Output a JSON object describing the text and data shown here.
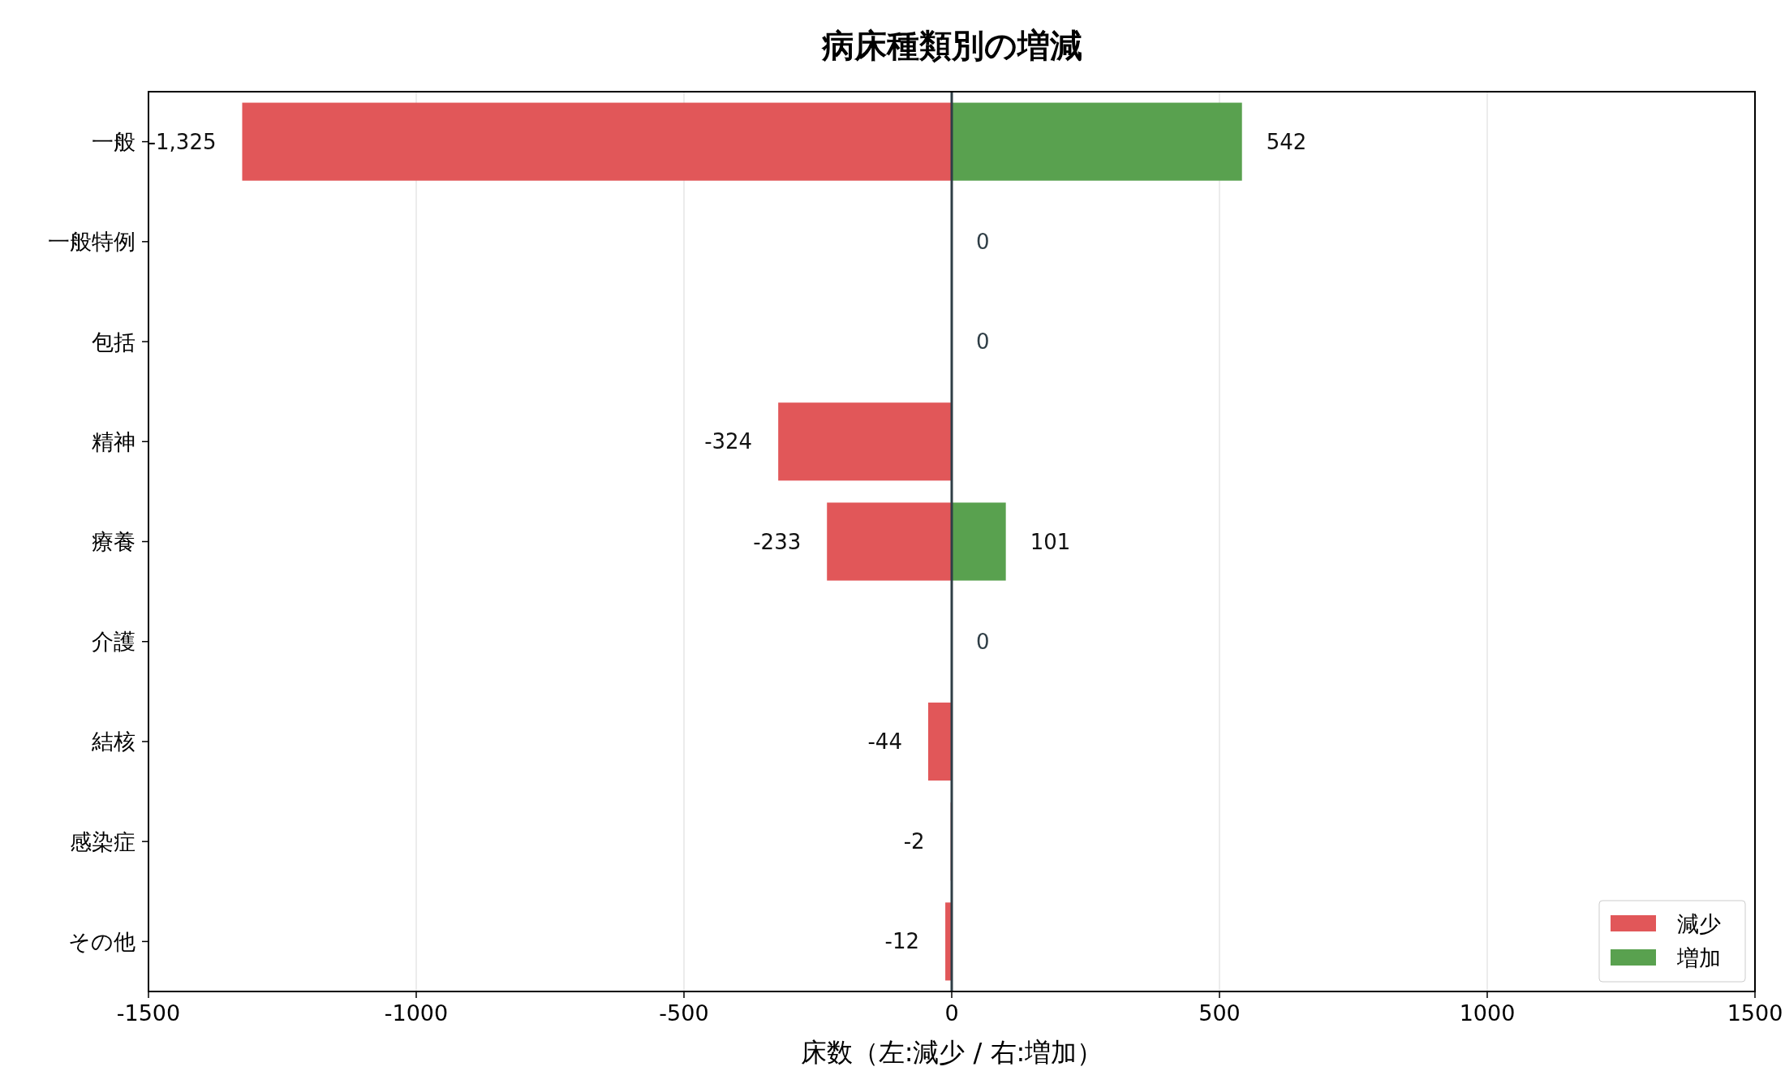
{
  "chart_data": {
    "type": "bar",
    "orientation": "horizontal",
    "title": "病床種類別の増減",
    "xlabel": "床数（左:減少 / 右:増加）",
    "categories": [
      "一般",
      "一般特例",
      "包括",
      "精神",
      "療養",
      "介護",
      "結核",
      "感染症",
      "その他"
    ],
    "series": [
      {
        "name": "減少",
        "color": "#e15759",
        "values": [
          -1325,
          0,
          0,
          -324,
          -233,
          0,
          -44,
          -2,
          -12
        ],
        "value_labels": [
          "-1,325",
          null,
          null,
          "-324",
          "-233",
          null,
          "-44",
          "-2",
          "-12"
        ]
      },
      {
        "name": "増加",
        "color": "#59a14f",
        "values": [
          542,
          0,
          0,
          0,
          101,
          0,
          0,
          0,
          0
        ],
        "value_labels": [
          "542",
          "0",
          "0",
          null,
          "101",
          "0",
          null,
          null,
          null
        ]
      }
    ],
    "xlim": [
      -1500,
      1500
    ],
    "xticks": [
      -1500,
      -1000,
      -500,
      0,
      500,
      1000,
      1500
    ],
    "grid": "x",
    "legend": "bottom right",
    "ref_lines": [
      {
        "axis": "x",
        "value": 0,
        "color": "#2f3e46"
      }
    ]
  }
}
